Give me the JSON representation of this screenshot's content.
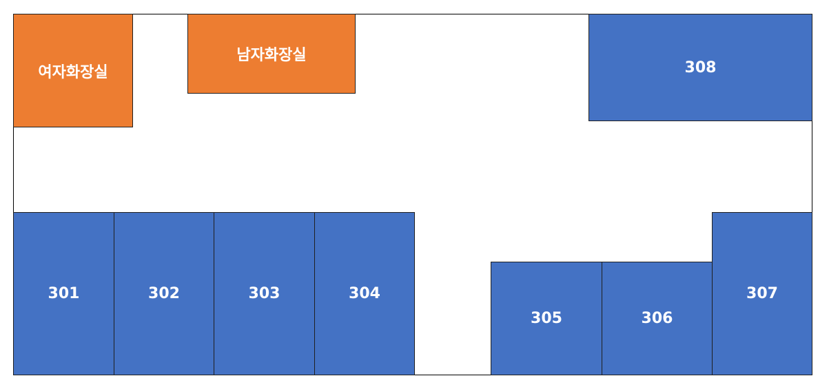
{
  "colors": {
    "classroom": "#4472c4",
    "restroom": "#ed7d31",
    "label": "#ffffff",
    "border": "#000000"
  },
  "restrooms": {
    "women": "여자화장실",
    "men": "남자화장실"
  },
  "rooms": {
    "r301": "301",
    "r302": "302",
    "r303": "303",
    "r304": "304",
    "r305": "305",
    "r306": "306",
    "r307": "307",
    "r308": "308"
  }
}
